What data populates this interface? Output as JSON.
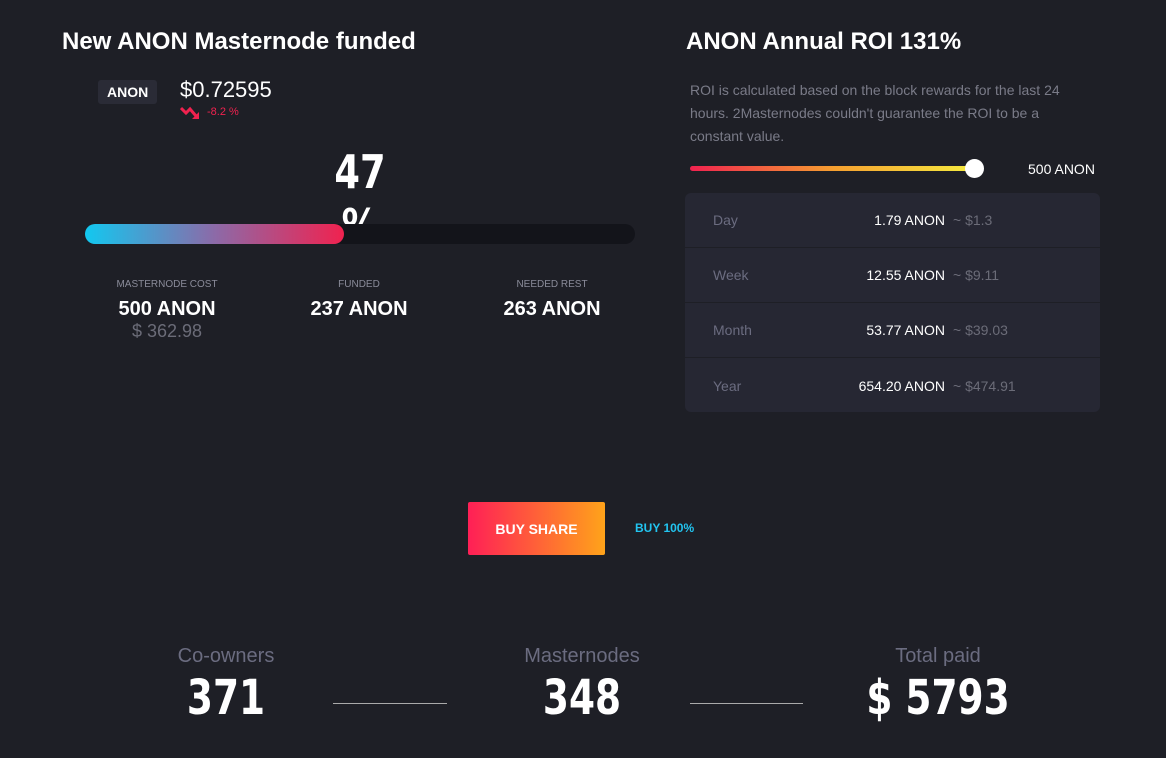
{
  "funding": {
    "title": "New ANON Masternode funded",
    "ticker": "ANON",
    "price": "$0.72595",
    "change": "-8.2 %",
    "percent_label": "47 %",
    "progress": 47,
    "stats": [
      {
        "label": "MASTERNODE COST",
        "value": "500 ANON",
        "sub": "$ 362.98"
      },
      {
        "label": "FUNDED",
        "value": "237 ANON"
      },
      {
        "label": "NEEDED REST",
        "value": "263 ANON"
      }
    ]
  },
  "roi": {
    "title": "ANON Annual ROI 131%",
    "description": "ROI is calculated based on the block rewards for the last 24 hours. 2Masternodes couldn't guarantee the ROI to be a constant value.",
    "slider_value": "500 ANON",
    "rows": [
      {
        "period": "Day",
        "amount": "1.79 ANON",
        "usd": "~  $1.3"
      },
      {
        "period": "Week",
        "amount": "12.55 ANON",
        "usd": "~  $9.11"
      },
      {
        "period": "Month",
        "amount": "53.77 ANON",
        "usd": "~  $39.03"
      },
      {
        "period": "Year",
        "amount": "654.20 ANON",
        "usd": "~  $474.91"
      }
    ]
  },
  "actions": {
    "buy_share": "BUY SHARE",
    "buy_all": "BUY 100%"
  },
  "totals": [
    {
      "label": "Co-owners",
      "value": "371"
    },
    {
      "label": "Masternodes",
      "value": "348"
    },
    {
      "label": "Total paid",
      "value": "$ 5793"
    }
  ]
}
